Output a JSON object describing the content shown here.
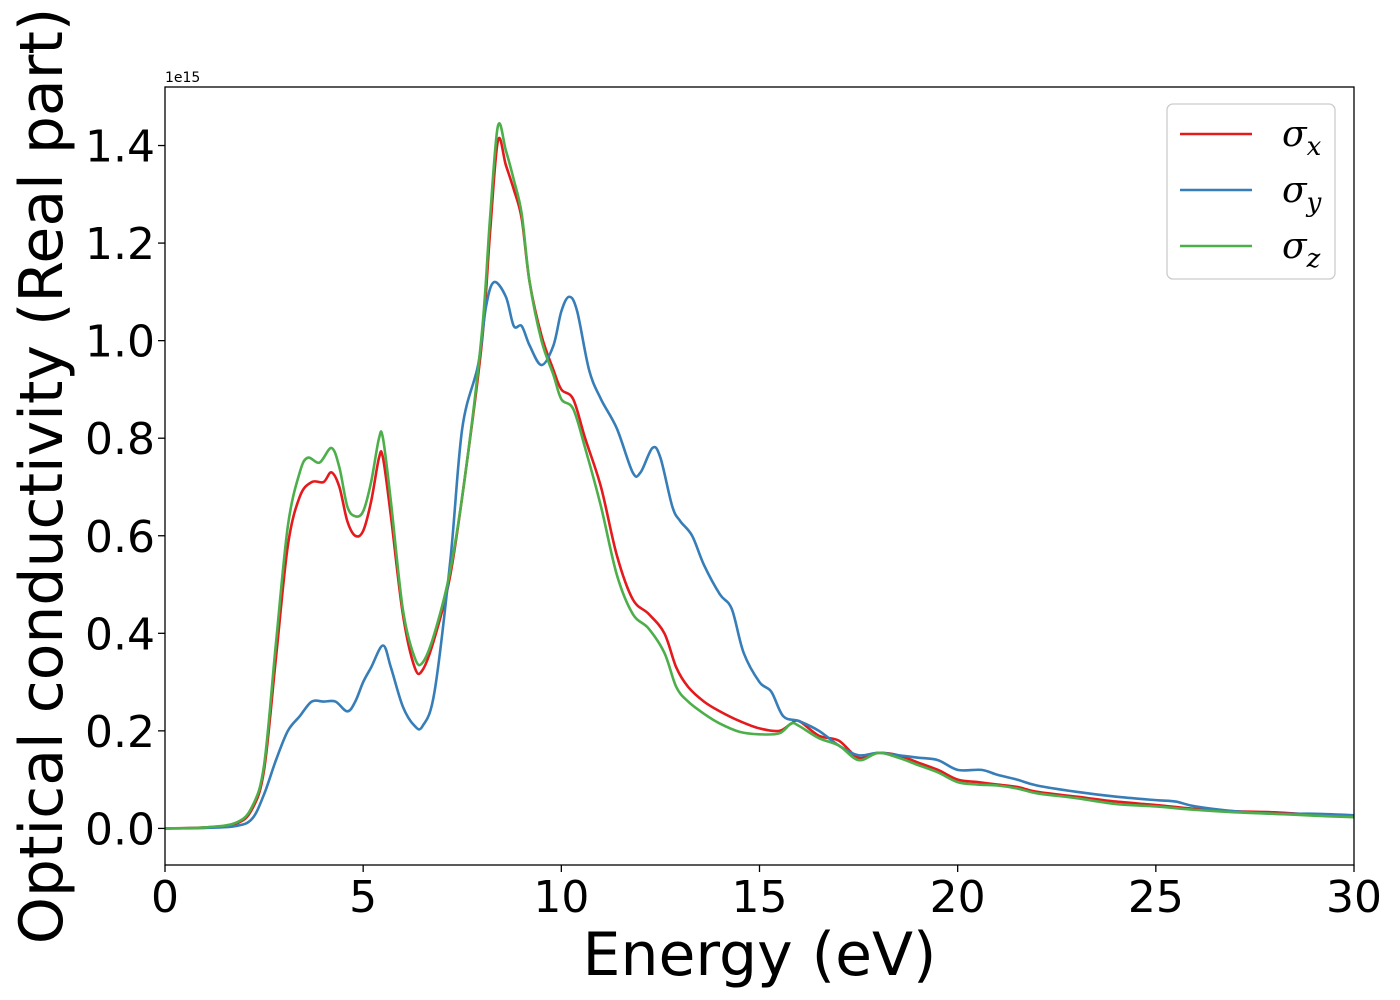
{
  "chart_data": {
    "type": "line",
    "title": "",
    "xlabel": "Energy (eV)",
    "ylabel": "Optical conductivity (Real part)",
    "y_offset_label": "1e15",
    "y_scale_factor": 1000000000000000.0,
    "xlim": [
      0,
      30
    ],
    "ylim": [
      -0.075,
      1.52
    ],
    "xticks": [
      0,
      5,
      10,
      15,
      20,
      25,
      30
    ],
    "xtick_labels": [
      "0",
      "5",
      "10",
      "15",
      "20",
      "25",
      "30"
    ],
    "yticks": [
      0.0,
      0.2,
      0.4,
      0.6,
      0.8,
      1.0,
      1.2,
      1.4
    ],
    "ytick_labels": [
      "0.0",
      "0.2",
      "0.4",
      "0.6",
      "0.8",
      "1.0",
      "1.2",
      "1.4"
    ],
    "grid": false,
    "legend_position": "top-right",
    "series": [
      {
        "name": "σx",
        "legend_symbol": "σ",
        "legend_subscript": "x",
        "color": "#e41a1c",
        "points": [
          [
            0,
            0
          ],
          [
            1,
            0.002
          ],
          [
            1.8,
            0.01
          ],
          [
            2.2,
            0.04
          ],
          [
            2.5,
            0.12
          ],
          [
            2.8,
            0.35
          ],
          [
            3.1,
            0.58
          ],
          [
            3.4,
            0.68
          ],
          [
            3.7,
            0.71
          ],
          [
            4.0,
            0.71
          ],
          [
            4.2,
            0.73
          ],
          [
            4.4,
            0.7
          ],
          [
            4.6,
            0.63
          ],
          [
            4.8,
            0.6
          ],
          [
            5.0,
            0.61
          ],
          [
            5.2,
            0.67
          ],
          [
            5.4,
            0.76
          ],
          [
            5.5,
            0.76
          ],
          [
            5.7,
            0.64
          ],
          [
            6.0,
            0.44
          ],
          [
            6.3,
            0.33
          ],
          [
            6.5,
            0.325
          ],
          [
            6.8,
            0.39
          ],
          [
            7.2,
            0.52
          ],
          [
            7.6,
            0.74
          ],
          [
            8.0,
            1.0
          ],
          [
            8.2,
            1.22
          ],
          [
            8.4,
            1.41
          ],
          [
            8.6,
            1.36
          ],
          [
            8.8,
            1.31
          ],
          [
            9.0,
            1.25
          ],
          [
            9.2,
            1.12
          ],
          [
            9.5,
            1.01
          ],
          [
            9.8,
            0.94
          ],
          [
            10.0,
            0.9
          ],
          [
            10.3,
            0.88
          ],
          [
            10.6,
            0.8
          ],
          [
            11.0,
            0.7
          ],
          [
            11.4,
            0.56
          ],
          [
            11.8,
            0.47
          ],
          [
            12.2,
            0.44
          ],
          [
            12.6,
            0.4
          ],
          [
            12.9,
            0.33
          ],
          [
            13.2,
            0.29
          ],
          [
            13.6,
            0.26
          ],
          [
            14.0,
            0.24
          ],
          [
            14.5,
            0.22
          ],
          [
            15.0,
            0.205
          ],
          [
            15.5,
            0.2
          ],
          [
            15.8,
            0.215
          ],
          [
            16.0,
            0.22
          ],
          [
            16.5,
            0.19
          ],
          [
            17.0,
            0.18
          ],
          [
            17.5,
            0.145
          ],
          [
            18.0,
            0.155
          ],
          [
            18.5,
            0.15
          ],
          [
            19.0,
            0.135
          ],
          [
            19.5,
            0.12
          ],
          [
            20.0,
            0.1
          ],
          [
            20.5,
            0.095
          ],
          [
            21.0,
            0.09
          ],
          [
            21.5,
            0.085
          ],
          [
            22.0,
            0.075
          ],
          [
            23.0,
            0.065
          ],
          [
            24.0,
            0.055
          ],
          [
            25.0,
            0.048
          ],
          [
            26.0,
            0.04
          ],
          [
            27.0,
            0.035
          ],
          [
            28.0,
            0.033
          ],
          [
            29.0,
            0.028
          ],
          [
            30.0,
            0.025
          ]
        ]
      },
      {
        "name": "σy",
        "legend_symbol": "σ",
        "legend_subscript": "y",
        "color": "#377eb8",
        "points": [
          [
            0,
            0
          ],
          [
            1,
            0.001
          ],
          [
            1.8,
            0.005
          ],
          [
            2.2,
            0.02
          ],
          [
            2.5,
            0.07
          ],
          [
            2.8,
            0.14
          ],
          [
            3.1,
            0.2
          ],
          [
            3.4,
            0.23
          ],
          [
            3.7,
            0.26
          ],
          [
            4.0,
            0.26
          ],
          [
            4.3,
            0.26
          ],
          [
            4.6,
            0.24
          ],
          [
            4.8,
            0.26
          ],
          [
            5.0,
            0.3
          ],
          [
            5.2,
            0.33
          ],
          [
            5.5,
            0.375
          ],
          [
            5.7,
            0.33
          ],
          [
            6.0,
            0.25
          ],
          [
            6.3,
            0.21
          ],
          [
            6.5,
            0.21
          ],
          [
            6.8,
            0.28
          ],
          [
            7.2,
            0.55
          ],
          [
            7.5,
            0.82
          ],
          [
            7.9,
            0.95
          ],
          [
            8.1,
            1.07
          ],
          [
            8.3,
            1.12
          ],
          [
            8.6,
            1.09
          ],
          [
            8.8,
            1.03
          ],
          [
            9.0,
            1.03
          ],
          [
            9.2,
            0.99
          ],
          [
            9.5,
            0.95
          ],
          [
            9.8,
            0.99
          ],
          [
            10.0,
            1.06
          ],
          [
            10.2,
            1.09
          ],
          [
            10.4,
            1.06
          ],
          [
            10.7,
            0.94
          ],
          [
            11.0,
            0.88
          ],
          [
            11.4,
            0.82
          ],
          [
            11.8,
            0.73
          ],
          [
            12.0,
            0.73
          ],
          [
            12.3,
            0.78
          ],
          [
            12.5,
            0.76
          ],
          [
            12.8,
            0.66
          ],
          [
            13.0,
            0.63
          ],
          [
            13.3,
            0.6
          ],
          [
            13.6,
            0.54
          ],
          [
            14.0,
            0.48
          ],
          [
            14.3,
            0.45
          ],
          [
            14.6,
            0.36
          ],
          [
            15.0,
            0.3
          ],
          [
            15.3,
            0.28
          ],
          [
            15.6,
            0.23
          ],
          [
            16.0,
            0.22
          ],
          [
            16.5,
            0.2
          ],
          [
            17.0,
            0.17
          ],
          [
            17.5,
            0.15
          ],
          [
            18.0,
            0.155
          ],
          [
            18.5,
            0.15
          ],
          [
            19.0,
            0.145
          ],
          [
            19.5,
            0.14
          ],
          [
            20.0,
            0.12
          ],
          [
            20.6,
            0.12
          ],
          [
            21.0,
            0.11
          ],
          [
            21.5,
            0.1
          ],
          [
            22.0,
            0.088
          ],
          [
            23.0,
            0.075
          ],
          [
            24.0,
            0.065
          ],
          [
            25.0,
            0.058
          ],
          [
            25.5,
            0.055
          ],
          [
            26.0,
            0.045
          ],
          [
            27.0,
            0.035
          ],
          [
            28.0,
            0.03
          ],
          [
            29.0,
            0.03
          ],
          [
            30.0,
            0.027
          ]
        ]
      },
      {
        "name": "σz",
        "legend_symbol": "σ",
        "legend_subscript": "z",
        "color": "#4daf4a",
        "points": [
          [
            0,
            0
          ],
          [
            1,
            0.002
          ],
          [
            1.8,
            0.012
          ],
          [
            2.2,
            0.045
          ],
          [
            2.5,
            0.13
          ],
          [
            2.8,
            0.38
          ],
          [
            3.1,
            0.62
          ],
          [
            3.4,
            0.73
          ],
          [
            3.6,
            0.76
          ],
          [
            3.9,
            0.75
          ],
          [
            4.2,
            0.78
          ],
          [
            4.4,
            0.74
          ],
          [
            4.6,
            0.66
          ],
          [
            4.8,
            0.64
          ],
          [
            5.0,
            0.65
          ],
          [
            5.2,
            0.71
          ],
          [
            5.4,
            0.8
          ],
          [
            5.5,
            0.8
          ],
          [
            5.7,
            0.67
          ],
          [
            6.0,
            0.45
          ],
          [
            6.3,
            0.35
          ],
          [
            6.5,
            0.34
          ],
          [
            6.8,
            0.4
          ],
          [
            7.2,
            0.53
          ],
          [
            7.6,
            0.74
          ],
          [
            8.0,
            1.02
          ],
          [
            8.2,
            1.25
          ],
          [
            8.4,
            1.44
          ],
          [
            8.6,
            1.39
          ],
          [
            8.8,
            1.33
          ],
          [
            9.0,
            1.26
          ],
          [
            9.2,
            1.12
          ],
          [
            9.5,
            1.0
          ],
          [
            9.8,
            0.93
          ],
          [
            10.0,
            0.88
          ],
          [
            10.3,
            0.86
          ],
          [
            10.6,
            0.78
          ],
          [
            11.0,
            0.66
          ],
          [
            11.4,
            0.52
          ],
          [
            11.8,
            0.44
          ],
          [
            12.2,
            0.41
          ],
          [
            12.6,
            0.36
          ],
          [
            12.9,
            0.29
          ],
          [
            13.2,
            0.26
          ],
          [
            13.6,
            0.235
          ],
          [
            14.0,
            0.215
          ],
          [
            14.5,
            0.198
          ],
          [
            15.0,
            0.193
          ],
          [
            15.5,
            0.195
          ],
          [
            15.8,
            0.215
          ],
          [
            16.0,
            0.21
          ],
          [
            16.5,
            0.185
          ],
          [
            17.0,
            0.17
          ],
          [
            17.5,
            0.14
          ],
          [
            18.0,
            0.155
          ],
          [
            18.5,
            0.145
          ],
          [
            19.0,
            0.13
          ],
          [
            19.5,
            0.115
          ],
          [
            20.0,
            0.095
          ],
          [
            20.5,
            0.09
          ],
          [
            21.0,
            0.088
          ],
          [
            21.5,
            0.082
          ],
          [
            22.0,
            0.072
          ],
          [
            23.0,
            0.062
          ],
          [
            24.0,
            0.05
          ],
          [
            25.0,
            0.045
          ],
          [
            26.0,
            0.038
          ],
          [
            27.0,
            0.033
          ],
          [
            28.0,
            0.03
          ],
          [
            29.0,
            0.026
          ],
          [
            30.0,
            0.023
          ]
        ]
      }
    ]
  }
}
